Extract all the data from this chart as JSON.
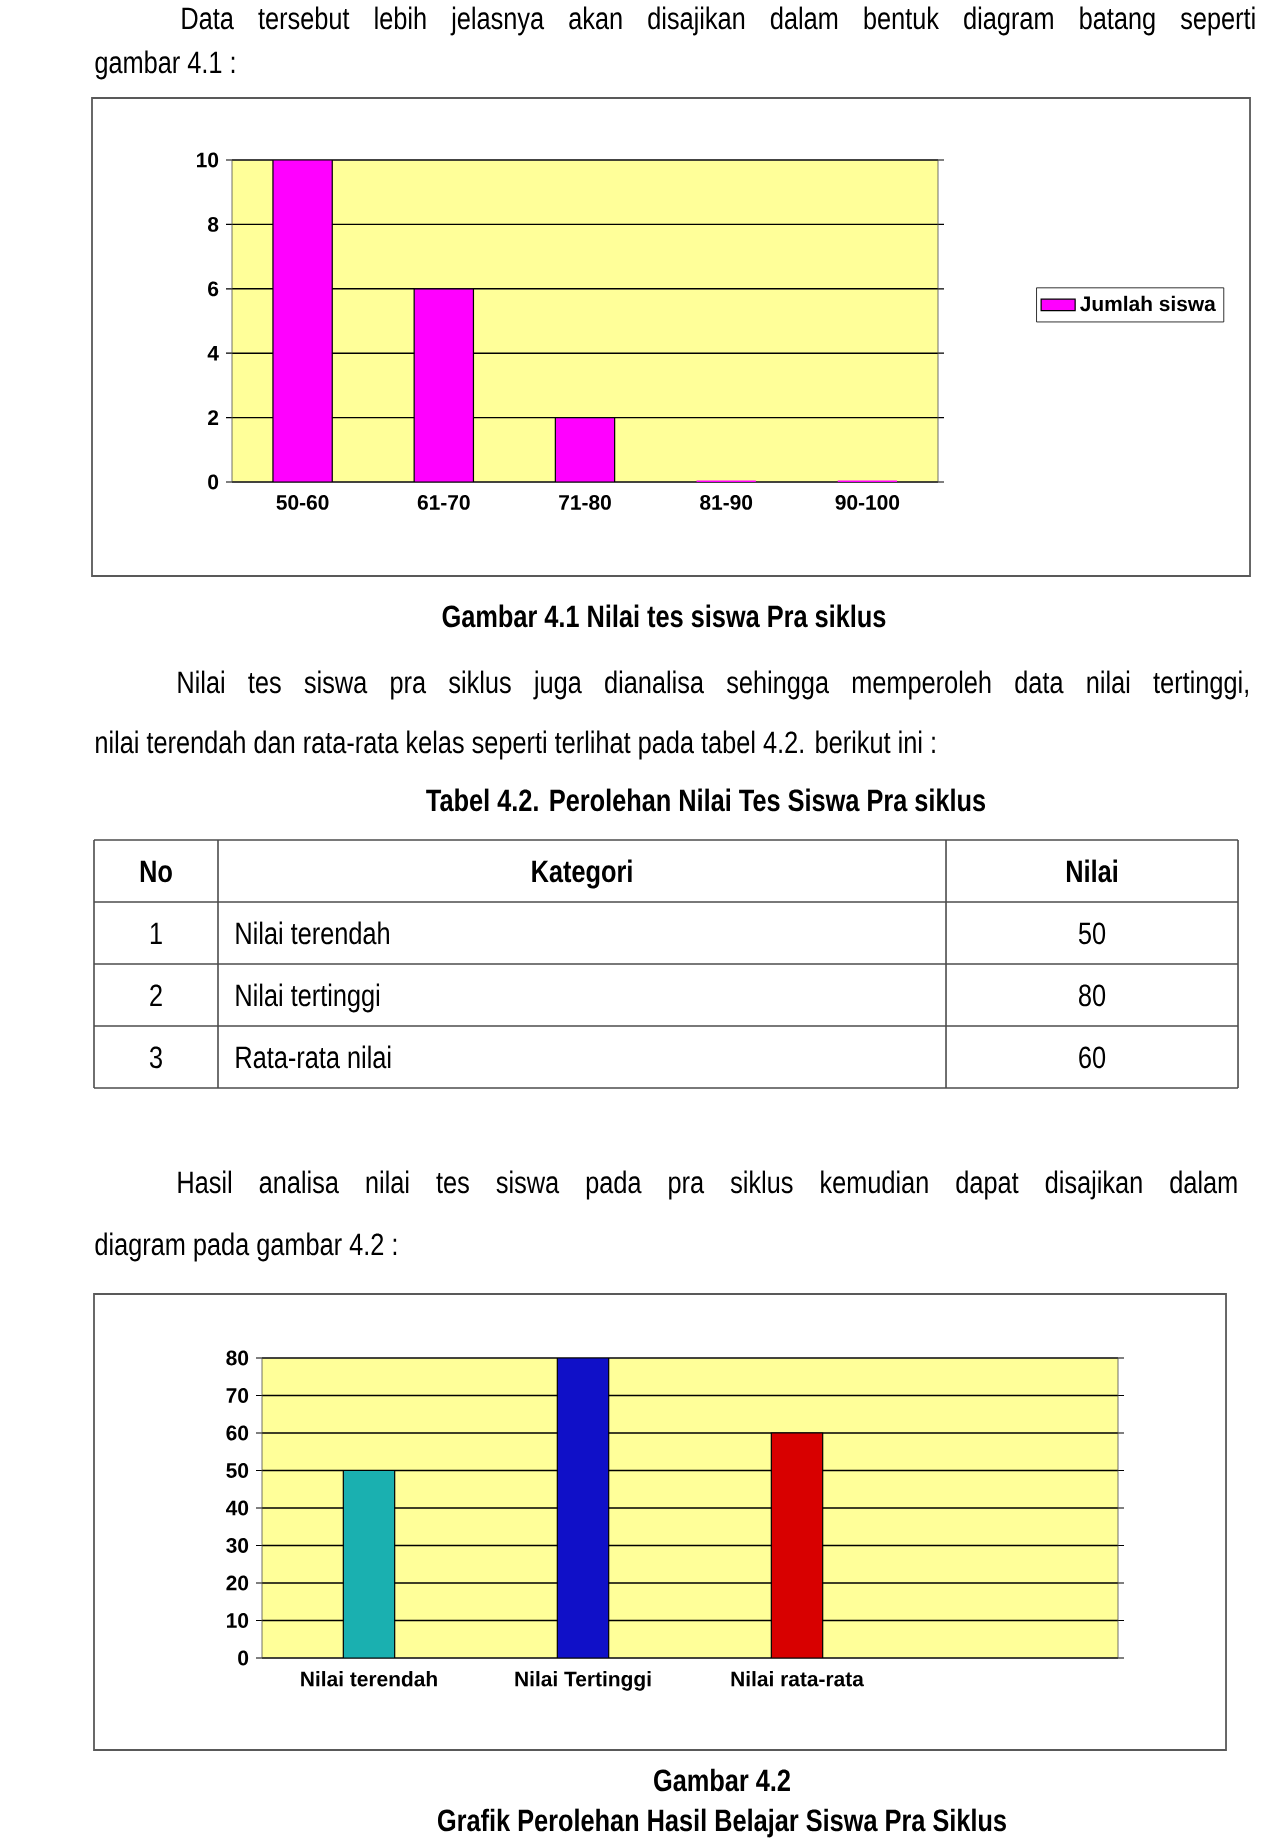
{
  "chart_data": [
    {
      "type": "bar",
      "title": "Gambar 4.1 Nilai tes siswa Pra siklus",
      "annotations": [
        "Data tersebut lebih jelasnya akan disajikan dalam bentuk diagram batang seperti",
        "gambar 4.1 :"
      ],
      "categories": [
        "50-60",
        "61-70",
        "71-80",
        "81-90",
        "90-100"
      ],
      "series": [
        {
          "name": "Jumlah siswa",
          "color": "#ff00ff",
          "values": [
            10,
            6,
            2,
            0,
            0
          ]
        }
      ],
      "ylim": [
        0,
        10
      ],
      "yticks": [
        0,
        2,
        4,
        6,
        8,
        10
      ],
      "grid": "y",
      "legend": "right"
    },
    {
      "type": "other",
      "title": "Tabel 4.2. Perolehan Nilai Tes Siswa Pra siklus",
      "annotations": [
        "Nilai tes siswa pra siklus juga dianalisa sehingga memperoleh data nilai tertinggi,",
        "nilai terendah dan rata-rata kelas seperti terlihat pada tabel 4.2. berikut ini :",
        "No",
        "Kategori",
        "Nilai",
        "1",
        "Nilai terendah",
        "50",
        "2",
        "Nilai tertinggi",
        "80",
        "3",
        "Rata-rata nilai",
        "60"
      ]
    },
    {
      "type": "bar",
      "title": "Gambar 4.2",
      "subtitle": "Grafik Perolehan Hasil Belajar Siswa Pra Siklus",
      "annotations": [
        "Hasil analisa nilai tes siswa pada pra siklus kemudian dapat disajikan dalam",
        "diagram pada gambar 4.2 :"
      ],
      "categories": [
        "Nilai terendah",
        "Nilai Tertinggi",
        "Nilai rata-rata"
      ],
      "values": [
        50,
        80,
        60
      ],
      "colors": [
        "#1ab0b0",
        "#1010c8",
        "#d80000"
      ],
      "ylim": [
        0,
        80
      ],
      "yticks": [
        0,
        10,
        20,
        30,
        40,
        50,
        60,
        70,
        80
      ],
      "grid": "y"
    }
  ]
}
